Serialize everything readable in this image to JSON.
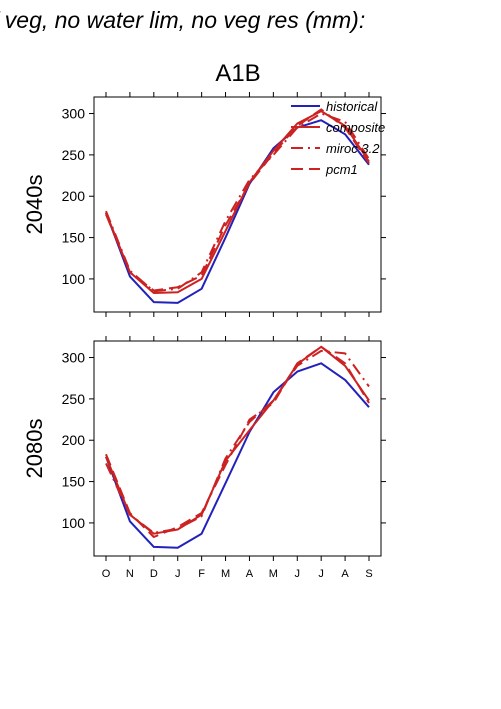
{
  "header": {
    "title": "f veg, no water lim, no veg res (mm):",
    "scenario": "A1B"
  },
  "colors": {
    "historical": "#2222bb",
    "projection": "#cc2222"
  },
  "chart_data": [
    {
      "type": "line",
      "panel_label": "2040s",
      "categories": [
        "O",
        "N",
        "D",
        "J",
        "F",
        "M",
        "A",
        "M",
        "J",
        "J",
        "A",
        "S"
      ],
      "ylim": [
        60,
        320
      ],
      "yticks": [
        100,
        150,
        200,
        250,
        300
      ],
      "legend": {
        "placement": "top-right",
        "entries": [
          "historical",
          "composite",
          "miroc_3.2",
          "pcm1"
        ]
      },
      "series": [
        {
          "name": "historical",
          "style": "solid",
          "color": "#2222bb",
          "values": [
            180,
            103,
            72,
            71,
            88,
            150,
            215,
            258,
            283,
            292,
            275,
            238
          ]
        },
        {
          "name": "composite",
          "style": "solid",
          "color": "#cc2222",
          "values": [
            180,
            108,
            83,
            84,
            100,
            158,
            217,
            255,
            288,
            303,
            285,
            242
          ]
        },
        {
          "name": "miroc_3.2",
          "style": "dashdot",
          "color": "#cc2222",
          "values": [
            182,
            110,
            85,
            88,
            108,
            170,
            220,
            250,
            283,
            300,
            290,
            245
          ]
        },
        {
          "name": "pcm1",
          "style": "dashed",
          "color": "#cc2222",
          "values": [
            178,
            108,
            86,
            90,
            104,
            165,
            215,
            252,
            285,
            305,
            283,
            240
          ]
        }
      ]
    },
    {
      "type": "line",
      "panel_label": "2080s",
      "categories": [
        "O",
        "N",
        "D",
        "J",
        "F",
        "M",
        "A",
        "M",
        "J",
        "J",
        "A",
        "S"
      ],
      "ylim": [
        60,
        320
      ],
      "yticks": [
        100,
        150,
        200,
        250,
        300
      ],
      "series": [
        {
          "name": "historical",
          "style": "solid",
          "color": "#2222bb",
          "values": [
            180,
            102,
            71,
            70,
            87,
            148,
            210,
            258,
            283,
            293,
            273,
            240
          ]
        },
        {
          "name": "composite",
          "style": "solid",
          "color": "#cc2222",
          "values": [
            180,
            110,
            87,
            92,
            110,
            175,
            212,
            248,
            292,
            313,
            290,
            248
          ]
        },
        {
          "name": "miroc_3.2",
          "style": "dashdot",
          "color": "#cc2222",
          "values": [
            172,
            110,
            88,
            93,
            108,
            178,
            222,
            248,
            290,
            308,
            305,
            265
          ]
        },
        {
          "name": "pcm1",
          "style": "dashed",
          "color": "#cc2222",
          "values": [
            183,
            112,
            83,
            95,
            112,
            170,
            225,
            245,
            293,
            313,
            293,
            245
          ]
        }
      ]
    }
  ]
}
